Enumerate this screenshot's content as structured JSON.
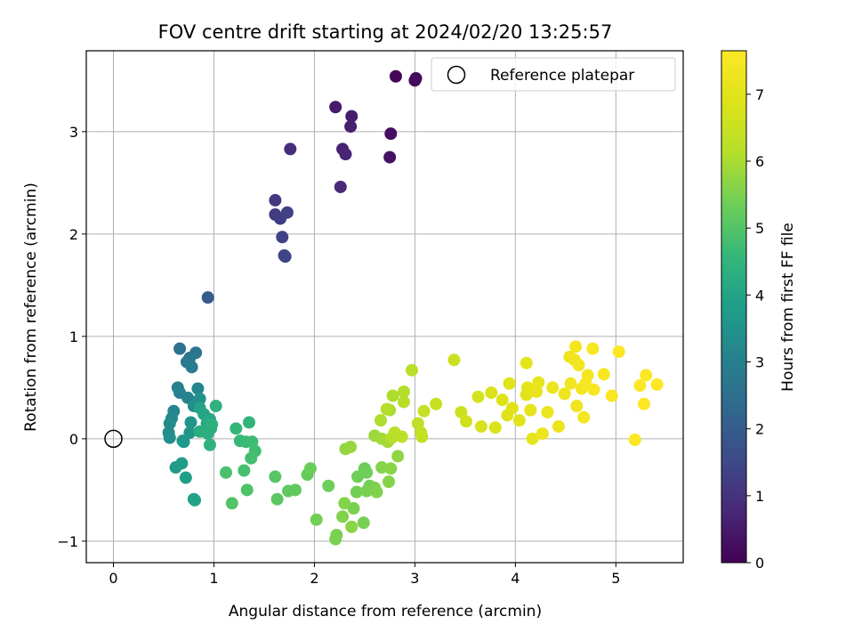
{
  "chart_data": {
    "type": "scatter",
    "title": "FOV centre drift starting at 2024/02/20 13:25:57",
    "xlabel": "Angular distance from reference (arcmin)",
    "ylabel": "Rotation from reference (arcmin)",
    "xlim": [
      -0.27,
      5.67
    ],
    "ylim": [
      -1.21,
      3.79
    ],
    "xticks": [
      0,
      1,
      2,
      3,
      4,
      5
    ],
    "yticks": [
      -1,
      0,
      1,
      2,
      3
    ],
    "xtick_labels": [
      "0",
      "1",
      "2",
      "3",
      "4",
      "5"
    ],
    "ytick_labels": [
      "−1",
      "0",
      "1",
      "2",
      "3"
    ],
    "grid": true,
    "legend": {
      "placement": "top-right",
      "entries": [
        "Reference platepar"
      ]
    },
    "reference_point": {
      "x": 0,
      "y": 0,
      "label": "Reference platepar"
    },
    "colorbar": {
      "label": "Hours from first FF file",
      "colormap": "viridis",
      "range": [
        0,
        7.65
      ],
      "ticks": [
        0,
        1,
        2,
        3,
        4,
        5,
        6,
        7
      ],
      "tick_labels": [
        "0",
        "1",
        "2",
        "3",
        "4",
        "5",
        "6",
        "7"
      ]
    },
    "points": [
      {
        "x": 2.81,
        "y": 3.54,
        "c": 0.1
      },
      {
        "x": 3.01,
        "y": 3.52,
        "c": 0.15
      },
      {
        "x": 3.0,
        "y": 3.5,
        "c": 0.2
      },
      {
        "x": 2.76,
        "y": 2.98,
        "c": 0.25
      },
      {
        "x": 2.75,
        "y": 2.75,
        "c": 0.3
      },
      {
        "x": 2.21,
        "y": 3.24,
        "c": 0.5
      },
      {
        "x": 2.37,
        "y": 3.15,
        "c": 0.55
      },
      {
        "x": 2.36,
        "y": 3.05,
        "c": 0.6
      },
      {
        "x": 2.28,
        "y": 2.83,
        "c": 0.65
      },
      {
        "x": 2.31,
        "y": 2.78,
        "c": 0.7
      },
      {
        "x": 2.26,
        "y": 2.46,
        "c": 0.8
      },
      {
        "x": 1.76,
        "y": 2.83,
        "c": 0.9
      },
      {
        "x": 1.61,
        "y": 2.33,
        "c": 1.1
      },
      {
        "x": 1.61,
        "y": 2.19,
        "c": 1.2
      },
      {
        "x": 1.66,
        "y": 2.15,
        "c": 1.25
      },
      {
        "x": 1.73,
        "y": 2.21,
        "c": 1.3
      },
      {
        "x": 1.68,
        "y": 1.97,
        "c": 1.35
      },
      {
        "x": 1.7,
        "y": 1.79,
        "c": 1.4
      },
      {
        "x": 1.71,
        "y": 1.78,
        "c": 1.45
      },
      {
        "x": 0.94,
        "y": 1.38,
        "c": 2.0
      },
      {
        "x": 0.66,
        "y": 0.88,
        "c": 2.6
      },
      {
        "x": 0.82,
        "y": 0.84,
        "c": 2.7
      },
      {
        "x": 0.76,
        "y": 0.79,
        "c": 2.75
      },
      {
        "x": 0.73,
        "y": 0.75,
        "c": 2.8
      },
      {
        "x": 0.78,
        "y": 0.7,
        "c": 2.85
      },
      {
        "x": 0.64,
        "y": 0.5,
        "c": 3.0
      },
      {
        "x": 0.66,
        "y": 0.45,
        "c": 3.05
      },
      {
        "x": 0.74,
        "y": 0.4,
        "c": 3.1
      },
      {
        "x": 0.84,
        "y": 0.49,
        "c": 3.15
      },
      {
        "x": 0.6,
        "y": 0.27,
        "c": 3.2
      },
      {
        "x": 0.58,
        "y": 0.2,
        "c": 3.25
      },
      {
        "x": 0.56,
        "y": 0.15,
        "c": 3.3
      },
      {
        "x": 0.55,
        "y": 0.06,
        "c": 3.35
      },
      {
        "x": 0.56,
        "y": 0.01,
        "c": 3.4
      },
      {
        "x": 0.8,
        "y": 0.32,
        "c": 3.45
      },
      {
        "x": 0.86,
        "y": 0.39,
        "c": 3.5
      },
      {
        "x": 0.77,
        "y": 0.16,
        "c": 3.55
      },
      {
        "x": 0.76,
        "y": 0.06,
        "c": 3.6
      },
      {
        "x": 0.7,
        "y": -0.03,
        "c": 3.65
      },
      {
        "x": 0.69,
        "y": -0.02,
        "c": 3.7
      },
      {
        "x": 0.62,
        "y": -0.28,
        "c": 3.75
      },
      {
        "x": 0.68,
        "y": -0.24,
        "c": 3.8
      },
      {
        "x": 0.72,
        "y": -0.38,
        "c": 3.85
      },
      {
        "x": 0.8,
        "y": -0.59,
        "c": 3.9
      },
      {
        "x": 0.81,
        "y": -0.6,
        "c": 3.95
      },
      {
        "x": 0.86,
        "y": 0.3,
        "c": 4.0
      },
      {
        "x": 0.9,
        "y": 0.24,
        "c": 4.05
      },
      {
        "x": 0.96,
        "y": 0.19,
        "c": 4.1
      },
      {
        "x": 0.93,
        "y": 0.15,
        "c": 4.15
      },
      {
        "x": 0.97,
        "y": 0.1,
        "c": 4.2
      },
      {
        "x": 0.86,
        "y": 0.07,
        "c": 4.25
      },
      {
        "x": 0.94,
        "y": 0.05,
        "c": 4.3
      },
      {
        "x": 0.98,
        "y": 0.14,
        "c": 4.35
      },
      {
        "x": 1.02,
        "y": 0.32,
        "c": 4.4
      },
      {
        "x": 0.96,
        "y": -0.06,
        "c": 4.45
      },
      {
        "x": 1.35,
        "y": 0.16,
        "c": 4.5
      },
      {
        "x": 1.22,
        "y": 0.1,
        "c": 4.55
      },
      {
        "x": 1.26,
        "y": -0.02,
        "c": 4.6
      },
      {
        "x": 1.32,
        "y": -0.03,
        "c": 4.65
      },
      {
        "x": 1.38,
        "y": -0.03,
        "c": 4.7
      },
      {
        "x": 1.41,
        "y": -0.12,
        "c": 4.75
      },
      {
        "x": 1.37,
        "y": -0.19,
        "c": 4.8
      },
      {
        "x": 1.3,
        "y": -0.31,
        "c": 4.85
      },
      {
        "x": 1.12,
        "y": -0.33,
        "c": 4.9
      },
      {
        "x": 1.33,
        "y": -0.5,
        "c": 4.95
      },
      {
        "x": 1.18,
        "y": -0.63,
        "c": 5.0
      },
      {
        "x": 1.61,
        "y": -0.37,
        "c": 5.05
      },
      {
        "x": 1.63,
        "y": -0.59,
        "c": 5.1
      },
      {
        "x": 1.74,
        "y": -0.51,
        "c": 5.15
      },
      {
        "x": 1.81,
        "y": -0.5,
        "c": 5.2
      },
      {
        "x": 1.93,
        "y": -0.35,
        "c": 5.25
      },
      {
        "x": 1.96,
        "y": -0.29,
        "c": 5.3
      },
      {
        "x": 2.14,
        "y": -0.46,
        "c": 5.35
      },
      {
        "x": 2.02,
        "y": -0.79,
        "c": 5.4
      },
      {
        "x": 2.22,
        "y": -0.94,
        "c": 5.45
      },
      {
        "x": 2.21,
        "y": -0.98,
        "c": 5.5
      },
      {
        "x": 2.28,
        "y": -0.76,
        "c": 5.55
      },
      {
        "x": 2.3,
        "y": -0.63,
        "c": 5.6
      },
      {
        "x": 2.37,
        "y": -0.86,
        "c": 5.65
      },
      {
        "x": 2.39,
        "y": -0.68,
        "c": 5.5
      },
      {
        "x": 2.49,
        "y": -0.82,
        "c": 5.45
      },
      {
        "x": 2.42,
        "y": -0.52,
        "c": 5.4
      },
      {
        "x": 2.43,
        "y": -0.37,
        "c": 5.35
      },
      {
        "x": 2.5,
        "y": -0.29,
        "c": 5.3
      },
      {
        "x": 2.52,
        "y": -0.33,
        "c": 5.35
      },
      {
        "x": 2.55,
        "y": -0.46,
        "c": 5.4
      },
      {
        "x": 2.52,
        "y": -0.51,
        "c": 5.45
      },
      {
        "x": 2.6,
        "y": -0.48,
        "c": 5.5
      },
      {
        "x": 2.62,
        "y": -0.52,
        "c": 5.55
      },
      {
        "x": 2.67,
        "y": -0.28,
        "c": 5.6
      },
      {
        "x": 2.76,
        "y": -0.29,
        "c": 5.65
      },
      {
        "x": 2.74,
        "y": -0.42,
        "c": 5.6
      },
      {
        "x": 2.83,
        "y": -0.17,
        "c": 5.7
      },
      {
        "x": 2.31,
        "y": -0.1,
        "c": 5.75
      },
      {
        "x": 2.36,
        "y": -0.08,
        "c": 5.8
      },
      {
        "x": 2.6,
        "y": 0.03,
        "c": 5.85
      },
      {
        "x": 2.67,
        "y": 0.0,
        "c": 5.9
      },
      {
        "x": 2.73,
        "y": -0.03,
        "c": 5.95
      },
      {
        "x": 2.75,
        "y": 0.28,
        "c": 6.0
      },
      {
        "x": 2.66,
        "y": 0.18,
        "c": 6.05
      },
      {
        "x": 2.72,
        "y": 0.29,
        "c": 6.1
      },
      {
        "x": 2.77,
        "y": 0.01,
        "c": 6.15
      },
      {
        "x": 2.8,
        "y": 0.06,
        "c": 6.2
      },
      {
        "x": 2.87,
        "y": 0.02,
        "c": 6.25
      },
      {
        "x": 2.89,
        "y": 0.46,
        "c": 6.1
      },
      {
        "x": 2.78,
        "y": 0.42,
        "c": 6.05
      },
      {
        "x": 2.89,
        "y": 0.36,
        "c": 6.15
      },
      {
        "x": 2.97,
        "y": 0.67,
        "c": 6.2
      },
      {
        "x": 3.03,
        "y": 0.15,
        "c": 6.3
      },
      {
        "x": 3.06,
        "y": 0.06,
        "c": 6.35
      },
      {
        "x": 3.07,
        "y": 0.02,
        "c": 6.4
      },
      {
        "x": 3.09,
        "y": 0.27,
        "c": 6.45
      },
      {
        "x": 3.21,
        "y": 0.34,
        "c": 6.5
      },
      {
        "x": 3.39,
        "y": 0.77,
        "c": 6.55
      },
      {
        "x": 3.46,
        "y": 0.26,
        "c": 6.6
      },
      {
        "x": 3.51,
        "y": 0.17,
        "c": 6.65
      },
      {
        "x": 3.63,
        "y": 0.41,
        "c": 6.7
      },
      {
        "x": 3.66,
        "y": 0.12,
        "c": 6.75
      },
      {
        "x": 3.76,
        "y": 0.45,
        "c": 6.8
      },
      {
        "x": 3.8,
        "y": 0.11,
        "c": 6.85
      },
      {
        "x": 3.87,
        "y": 0.38,
        "c": 6.9
      },
      {
        "x": 3.92,
        "y": 0.23,
        "c": 6.95
      },
      {
        "x": 3.94,
        "y": 0.54,
        "c": 7.0
      },
      {
        "x": 3.97,
        "y": 0.3,
        "c": 6.95
      },
      {
        "x": 4.04,
        "y": 0.18,
        "c": 7.0
      },
      {
        "x": 4.11,
        "y": 0.74,
        "c": 7.05
      },
      {
        "x": 4.11,
        "y": 0.43,
        "c": 7.0
      },
      {
        "x": 4.12,
        "y": 0.5,
        "c": 7.05
      },
      {
        "x": 4.15,
        "y": 0.28,
        "c": 7.1
      },
      {
        "x": 4.17,
        "y": 0.0,
        "c": 7.1
      },
      {
        "x": 4.21,
        "y": 0.46,
        "c": 7.15
      },
      {
        "x": 4.23,
        "y": 0.55,
        "c": 7.15
      },
      {
        "x": 4.27,
        "y": 0.05,
        "c": 7.2
      },
      {
        "x": 4.32,
        "y": 0.26,
        "c": 7.2
      },
      {
        "x": 4.37,
        "y": 0.5,
        "c": 7.25
      },
      {
        "x": 4.43,
        "y": 0.12,
        "c": 7.25
      },
      {
        "x": 4.49,
        "y": 0.44,
        "c": 7.3
      },
      {
        "x": 4.54,
        "y": 0.8,
        "c": 7.3
      },
      {
        "x": 4.55,
        "y": 0.54,
        "c": 7.35
      },
      {
        "x": 4.59,
        "y": 0.77,
        "c": 7.35
      },
      {
        "x": 4.6,
        "y": 0.9,
        "c": 7.4
      },
      {
        "x": 4.61,
        "y": 0.32,
        "c": 7.35
      },
      {
        "x": 4.63,
        "y": 0.72,
        "c": 7.4
      },
      {
        "x": 4.66,
        "y": 0.49,
        "c": 7.4
      },
      {
        "x": 4.68,
        "y": 0.21,
        "c": 7.45
      },
      {
        "x": 4.72,
        "y": 0.62,
        "c": 7.45
      },
      {
        "x": 4.7,
        "y": 0.54,
        "c": 7.5
      },
      {
        "x": 4.77,
        "y": 0.88,
        "c": 7.5
      },
      {
        "x": 4.78,
        "y": 0.48,
        "c": 7.5
      },
      {
        "x": 4.88,
        "y": 0.63,
        "c": 7.55
      },
      {
        "x": 4.96,
        "y": 0.42,
        "c": 7.55
      },
      {
        "x": 5.03,
        "y": 0.85,
        "c": 7.6
      },
      {
        "x": 5.19,
        "y": -0.01,
        "c": 7.6
      },
      {
        "x": 5.24,
        "y": 0.52,
        "c": 7.6
      },
      {
        "x": 5.28,
        "y": 0.34,
        "c": 7.65
      },
      {
        "x": 5.3,
        "y": 0.62,
        "c": 7.65
      },
      {
        "x": 5.41,
        "y": 0.53,
        "c": 7.65
      }
    ]
  }
}
